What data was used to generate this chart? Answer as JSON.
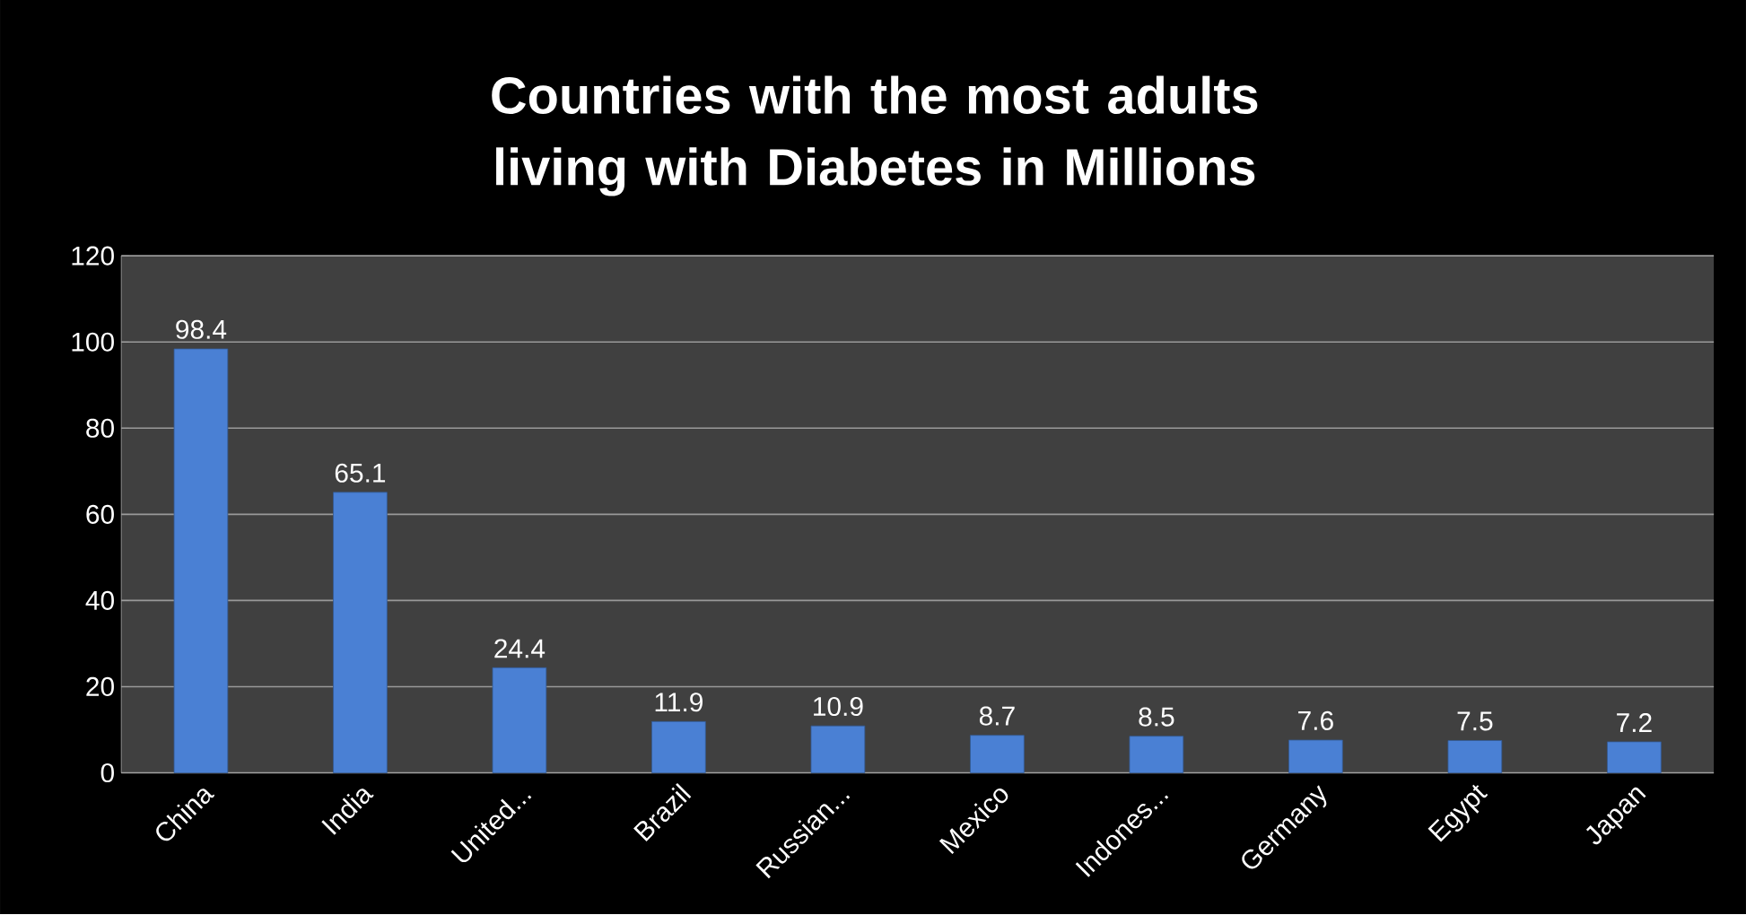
{
  "chart_data": {
    "type": "bar",
    "title": "Countries with the most adults living with Diabetes in Millions",
    "categories": [
      "China",
      "India",
      "United...",
      "Brazil",
      "Russian...",
      "Mexico",
      "Indones...",
      "Germany",
      "Egypt",
      "Japan"
    ],
    "values": [
      98.4,
      65.1,
      24.4,
      11.9,
      10.9,
      8.7,
      8.5,
      7.6,
      7.5,
      7.2
    ],
    "color": "#4a80d4",
    "ylim": [
      0,
      120
    ],
    "yticks": [
      0,
      20,
      40,
      60,
      80,
      100,
      120
    ],
    "grid": true,
    "data_labels": true
  }
}
